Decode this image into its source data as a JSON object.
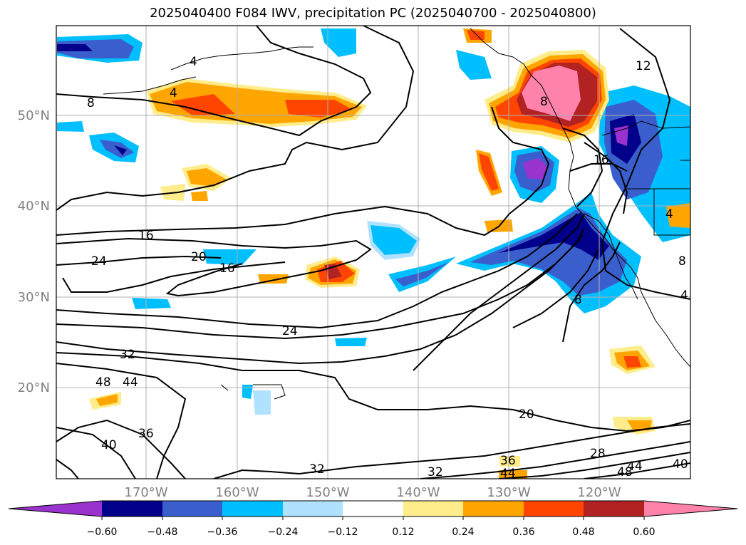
{
  "title": "2025040400 F084 IWV, precipitation PC (2025040700 - 2025040800)",
  "map": {
    "lon_ticks": [
      "170°W",
      "160°W",
      "150°W",
      "140°W",
      "130°W",
      "120°W"
    ],
    "lat_ticks": [
      "50°N",
      "40°N",
      "30°N",
      "20°N"
    ],
    "contour_labels": [
      "4",
      "8",
      "12",
      "16",
      "16",
      "16",
      "20",
      "20",
      "24",
      "24",
      "32",
      "32",
      "32",
      "36",
      "36",
      "40",
      "40",
      "44",
      "44",
      "44",
      "48",
      "48",
      "28",
      "8",
      "4",
      "8",
      "4",
      "8",
      "4"
    ]
  },
  "colorbar": {
    "tick_labels": [
      "−0.60",
      "−0.48",
      "−0.36",
      "−0.24",
      "−0.12",
      "0.12",
      "0.24",
      "0.36",
      "0.48",
      "0.60"
    ],
    "colors": [
      "#9a32cd",
      "#00008b",
      "#3a5fcd",
      "#00bfff",
      "#b0e2ff",
      "#ffffff",
      "#ffec8b",
      "#ffa500",
      "#ff4500",
      "#b22222",
      "#ff82ab"
    ]
  }
}
